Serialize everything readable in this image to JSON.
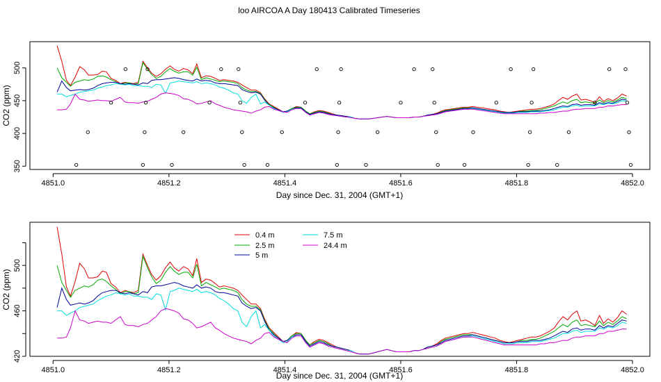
{
  "title": "loo AIRCOA A  Day 180413  Calibrated Timeseries",
  "colors": {
    "0.4 m": "#dd0000",
    "2.5 m": "#00aa00",
    "5 m": "#000099",
    "7.5 m": "#00dddd",
    "24.4 m": "#cc00cc"
  },
  "chart_data": [
    {
      "type": "line",
      "title": "",
      "xlabel": "Day since Dec. 31, 2004 (GMT+1)",
      "ylabel": "CO2 (ppm)",
      "xlim": [
        4850.96,
        4852.03
      ],
      "ylim": [
        345,
        540
      ],
      "xticks": [
        4851.0,
        4851.2,
        4851.4,
        4851.6,
        4851.8,
        4852.0
      ],
      "xtick_labels": [
        "4851.0",
        "4851.2",
        "4851.4",
        "4851.6",
        "4851.8",
        "4852.0"
      ],
      "yticks": [
        350,
        400,
        450,
        500
      ],
      "ytick_labels": [
        "350",
        "400",
        "450",
        "500"
      ],
      "legend": null,
      "flag_points": [
        {
          "x": 4851.04,
          "y": 352
        },
        {
          "x": 4851.06,
          "y": 402
        },
        {
          "x": 4851.1,
          "y": 447
        },
        {
          "x": 4851.125,
          "y": 498
        },
        {
          "x": 4851.155,
          "y": 352
        },
        {
          "x": 4851.158,
          "y": 402
        },
        {
          "x": 4851.16,
          "y": 447
        },
        {
          "x": 4851.163,
          "y": 498
        },
        {
          "x": 4851.205,
          "y": 352
        },
        {
          "x": 4851.225,
          "y": 402
        },
        {
          "x": 4851.27,
          "y": 447
        },
        {
          "x": 4851.29,
          "y": 498
        },
        {
          "x": 4851.32,
          "y": 498
        },
        {
          "x": 4851.323,
          "y": 447
        },
        {
          "x": 4851.326,
          "y": 402
        },
        {
          "x": 4851.33,
          "y": 352
        },
        {
          "x": 4851.37,
          "y": 352
        },
        {
          "x": 4851.395,
          "y": 402
        },
        {
          "x": 4851.435,
          "y": 447
        },
        {
          "x": 4851.455,
          "y": 498
        },
        {
          "x": 4851.49,
          "y": 352
        },
        {
          "x": 4851.492,
          "y": 402
        },
        {
          "x": 4851.494,
          "y": 447
        },
        {
          "x": 4851.497,
          "y": 498
        },
        {
          "x": 4851.54,
          "y": 352
        },
        {
          "x": 4851.56,
          "y": 402
        },
        {
          "x": 4851.6,
          "y": 447
        },
        {
          "x": 4851.623,
          "y": 498
        },
        {
          "x": 4851.655,
          "y": 498
        },
        {
          "x": 4851.658,
          "y": 447
        },
        {
          "x": 4851.661,
          "y": 402
        },
        {
          "x": 4851.664,
          "y": 352
        },
        {
          "x": 4851.71,
          "y": 352
        },
        {
          "x": 4851.725,
          "y": 402
        },
        {
          "x": 4851.765,
          "y": 447
        },
        {
          "x": 4851.79,
          "y": 498
        },
        {
          "x": 4851.82,
          "y": 352
        },
        {
          "x": 4851.823,
          "y": 402
        },
        {
          "x": 4851.826,
          "y": 447
        },
        {
          "x": 4851.829,
          "y": 498
        },
        {
          "x": 4851.87,
          "y": 352
        },
        {
          "x": 4851.89,
          "y": 402
        },
        {
          "x": 4851.935,
          "y": 447
        },
        {
          "x": 4851.96,
          "y": 498
        },
        {
          "x": 4851.988,
          "y": 498
        },
        {
          "x": 4851.991,
          "y": 447
        },
        {
          "x": 4851.994,
          "y": 402
        },
        {
          "x": 4851.997,
          "y": 352
        }
      ]
    },
    {
      "type": "line",
      "title": "",
      "xlabel": "Day since Dec. 31, 2004 (GMT+1)",
      "ylabel": "CO2 (ppm)",
      "xlim": [
        4850.96,
        4852.03
      ],
      "ylim": [
        420,
        538
      ],
      "xticks": [
        4851.0,
        4851.2,
        4851.4,
        4851.6,
        4851.8,
        4852.0
      ],
      "xtick_labels": [
        "4851.0",
        "4851.2",
        "4851.4",
        "4851.6",
        "4851.8",
        "4852.0"
      ],
      "yticks": [
        420,
        440,
        460,
        480,
        500,
        520
      ],
      "ytick_labels": [
        "420",
        "",
        "460",
        "",
        "500",
        ""
      ],
      "legend": "top-left",
      "legend_rows": [
        [
          "0.4 m",
          "7.5 m"
        ],
        [
          "2.5 m",
          "24.4 m"
        ],
        [
          "5 m"
        ]
      ]
    }
  ],
  "series_x": [
    4851.007,
    4851.015,
    4851.023,
    4851.03,
    4851.038,
    4851.046,
    4851.054,
    4851.061,
    4851.069,
    4851.077,
    4851.085,
    4851.092,
    4851.1,
    4851.108,
    4851.116,
    4851.124,
    4851.131,
    4851.139,
    4851.147,
    4851.155,
    4851.163,
    4851.17,
    4851.178,
    4851.186,
    4851.194,
    4851.202,
    4851.209,
    4851.217,
    4851.225,
    4851.233,
    4851.241,
    4851.248,
    4851.256,
    4851.264,
    4851.272,
    4851.28,
    4851.287,
    4851.295,
    4851.303,
    4851.311,
    4851.319,
    4851.326,
    4851.334,
    4851.342,
    4851.35,
    4851.358,
    4851.365,
    4851.373,
    4851.381,
    4851.389,
    4851.397,
    4851.404,
    4851.412,
    4851.42,
    4851.428,
    4851.436,
    4851.443,
    4851.451,
    4851.459,
    4851.467,
    4851.475,
    4851.482,
    4851.49,
    4851.498,
    4851.506,
    4851.514,
    4851.521,
    4851.529,
    4851.537,
    4851.545,
    4851.553,
    4851.56,
    4851.568,
    4851.576,
    4851.584,
    4851.592,
    4851.599,
    4851.607,
    4851.615,
    4851.623,
    4851.631,
    4851.638,
    4851.646,
    4851.654,
    4851.662,
    4851.67,
    4851.677,
    4851.685,
    4851.693,
    4851.701,
    4851.709,
    4851.716,
    4851.724,
    4851.732,
    4851.74,
    4851.748,
    4851.755,
    4851.763,
    4851.771,
    4851.779,
    4851.787,
    4851.794,
    4851.802,
    4851.81,
    4851.818,
    4851.826,
    4851.833,
    4851.841,
    4851.849,
    4851.857,
    4851.865,
    4851.872,
    4851.88,
    4851.888,
    4851.896,
    4851.904,
    4851.911,
    4851.919,
    4851.927,
    4851.935,
    4851.943,
    4851.95,
    4851.958,
    4851.966,
    4851.974,
    4851.982,
    4851.99
  ],
  "series": [
    {
      "name": "0.4 m",
      "values": [
        534,
        510,
        481,
        473,
        486,
        502,
        497,
        489,
        489,
        490,
        495,
        494,
        484,
        481,
        476,
        478,
        477,
        476,
        478,
        510,
        500,
        492,
        487,
        491,
        498,
        503,
        498,
        495,
        499,
        497,
        491,
        506,
        485,
        488,
        487,
        484,
        481,
        482,
        481,
        480,
        478,
        474,
        470,
        466,
        466,
        462,
        453,
        445,
        441,
        437,
        433,
        434,
        438,
        441,
        440,
        434,
        430,
        433,
        435,
        434,
        432,
        430,
        428,
        427,
        426,
        425,
        423,
        422,
        422,
        422,
        423,
        424,
        425,
        426,
        425,
        424,
        424,
        424,
        424,
        425,
        425,
        426,
        428,
        429,
        431,
        434,
        436,
        437,
        438,
        439,
        440,
        440,
        441,
        440,
        439,
        438,
        437,
        436,
        434,
        433,
        432,
        433,
        434,
        435,
        436,
        437,
        437,
        438,
        440,
        442,
        445,
        450,
        455,
        452,
        457,
        460,
        451,
        452,
        450,
        447,
        456,
        449,
        453,
        450,
        454,
        460,
        457
      ]
    },
    {
      "name": "2.5 m",
      "values": [
        500,
        485,
        478,
        472,
        478,
        480,
        482,
        481,
        483,
        487,
        488,
        486,
        482,
        479,
        475,
        477,
        477,
        475,
        476,
        508,
        498,
        490,
        484,
        487,
        494,
        499,
        495,
        492,
        494,
        494,
        489,
        501,
        482,
        485,
        483,
        481,
        479,
        480,
        479,
        478,
        476,
        470,
        466,
        464,
        464,
        461,
        452,
        444,
        440,
        436,
        433,
        434,
        438,
        440,
        440,
        434,
        430,
        432,
        434,
        433,
        431,
        429,
        428,
        427,
        426,
        425,
        423,
        422,
        422,
        422,
        423,
        424,
        425,
        426,
        425,
        424,
        424,
        424,
        424,
        425,
        425,
        426,
        428,
        429,
        430,
        433,
        435,
        436,
        437,
        438,
        439,
        439,
        439,
        438,
        437,
        436,
        435,
        434,
        433,
        432,
        432,
        432,
        433,
        434,
        434,
        435,
        435,
        436,
        438,
        440,
        442,
        445,
        448,
        446,
        450,
        452,
        447,
        448,
        447,
        446,
        451,
        447,
        450,
        448,
        451,
        455,
        453
      ]
    },
    {
      "name": "5 m",
      "values": [
        463,
        480,
        470,
        465,
        466,
        467,
        466,
        467,
        469,
        473,
        476,
        477,
        478,
        478,
        476,
        475,
        476,
        475,
        474,
        477,
        476,
        481,
        482,
        482,
        483,
        484,
        485,
        484,
        482,
        481,
        480,
        483,
        480,
        481,
        480,
        477,
        476,
        476,
        475,
        474,
        473,
        467,
        464,
        462,
        463,
        460,
        451,
        443,
        439,
        436,
        433,
        434,
        437,
        439,
        439,
        433,
        429,
        431,
        433,
        432,
        430,
        429,
        428,
        427,
        426,
        425,
        423,
        422,
        422,
        422,
        423,
        424,
        425,
        426,
        425,
        424,
        424,
        424,
        424,
        425,
        425,
        426,
        428,
        429,
        430,
        432,
        434,
        435,
        436,
        437,
        438,
        438,
        439,
        438,
        437,
        436,
        435,
        434,
        433,
        432,
        432,
        432,
        433,
        433,
        433,
        434,
        434,
        434,
        435,
        436,
        438,
        440,
        442,
        441,
        444,
        445,
        443,
        444,
        444,
        443,
        447,
        445,
        447,
        446,
        449,
        452,
        451
      ]
    },
    {
      "name": "7.5 m",
      "values": [
        460,
        460,
        456,
        458,
        460,
        463,
        464,
        465,
        466,
        469,
        471,
        473,
        474,
        476,
        475,
        474,
        475,
        473,
        473,
        472,
        472,
        470,
        475,
        474,
        461,
        477,
        478,
        480,
        479,
        478,
        477,
        479,
        476,
        477,
        476,
        474,
        471,
        469,
        466,
        462,
        460,
        450,
        446,
        455,
        460,
        445,
        448,
        443,
        438,
        435,
        432,
        433,
        437,
        438,
        438,
        432,
        428,
        430,
        432,
        431,
        429,
        428,
        427,
        426,
        425,
        425,
        423,
        422,
        422,
        422,
        423,
        424,
        425,
        426,
        425,
        424,
        424,
        424,
        424,
        425,
        425,
        426,
        427,
        428,
        429,
        431,
        433,
        434,
        435,
        436,
        437,
        437,
        438,
        437,
        436,
        435,
        434,
        433,
        432,
        431,
        431,
        431,
        432,
        432,
        432,
        433,
        433,
        433,
        434,
        435,
        436,
        438,
        440,
        440,
        442,
        443,
        441,
        442,
        442,
        442,
        445,
        444,
        446,
        445,
        447,
        450,
        449
      ]
    },
    {
      "name": "24.4 m",
      "values": [
        436,
        436,
        437,
        445,
        460,
        452,
        451,
        449,
        450,
        451,
        450,
        450,
        449,
        452,
        455,
        448,
        447,
        447,
        446,
        448,
        449,
        452,
        455,
        460,
        462,
        461,
        460,
        458,
        453,
        452,
        449,
        445,
        446,
        448,
        450,
        445,
        443,
        440,
        438,
        436,
        435,
        434,
        433,
        431,
        434,
        436,
        440,
        441,
        437,
        435,
        433,
        432,
        436,
        438,
        438,
        432,
        428,
        430,
        432,
        431,
        429,
        428,
        427,
        426,
        425,
        424,
        423,
        422,
        422,
        422,
        423,
        424,
        425,
        426,
        425,
        424,
        424,
        424,
        424,
        425,
        425,
        426,
        427,
        428,
        429,
        431,
        433,
        434,
        435,
        436,
        437,
        437,
        437,
        436,
        435,
        434,
        433,
        432,
        431,
        430,
        430,
        430,
        430,
        430,
        430,
        430,
        430,
        431,
        431,
        432,
        432,
        433,
        434,
        434,
        436,
        437,
        437,
        438,
        438,
        438,
        440,
        440,
        442,
        442,
        443,
        444,
        444
      ]
    }
  ]
}
